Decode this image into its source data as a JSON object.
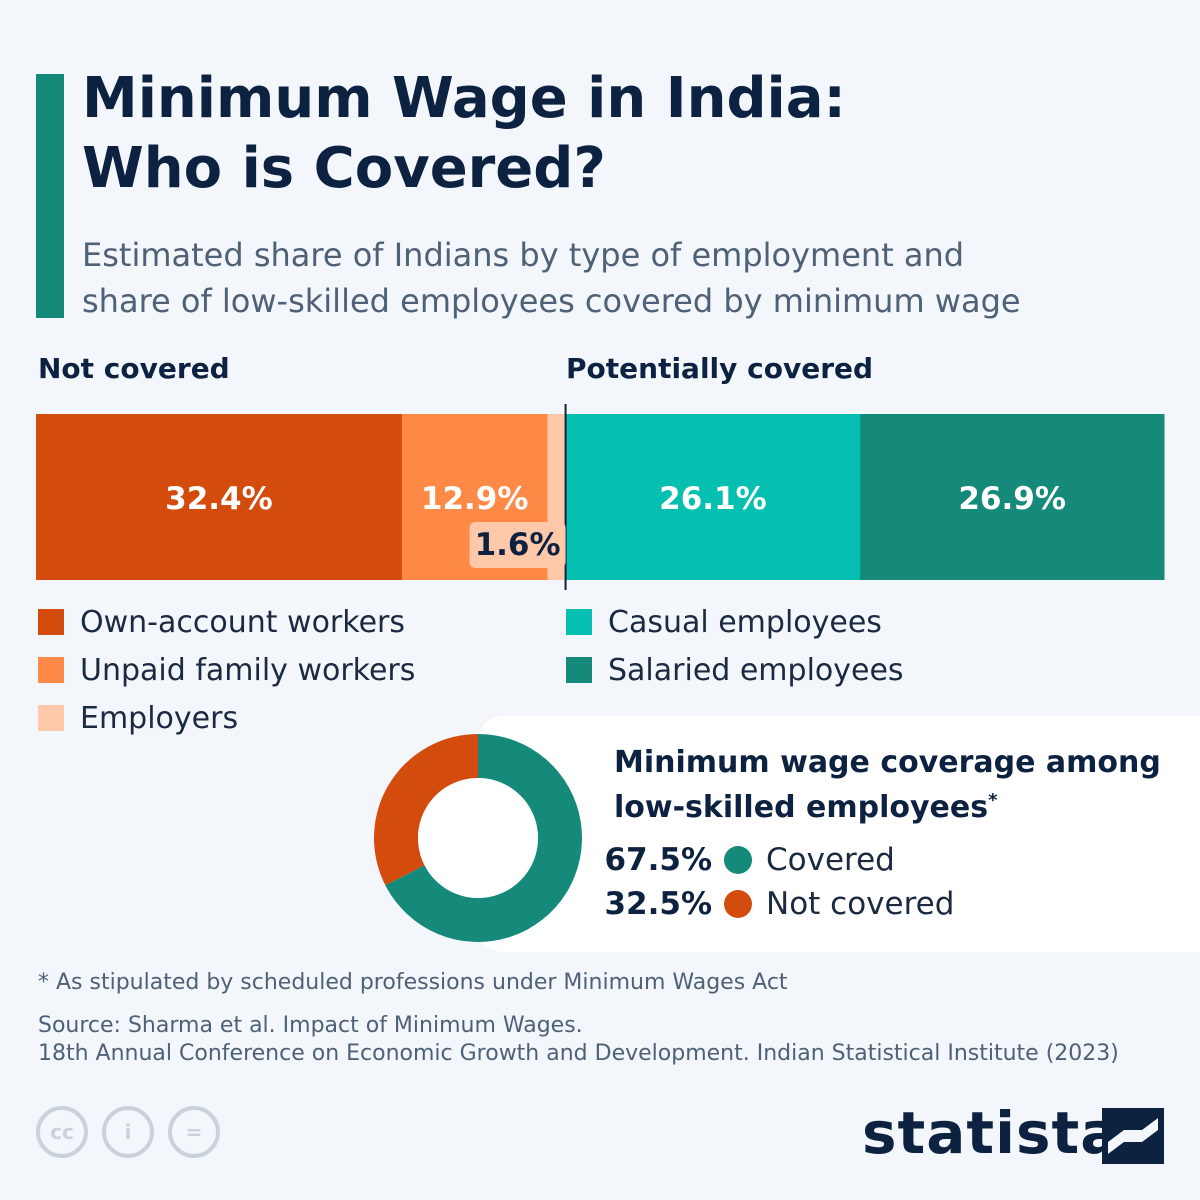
{
  "title_line1": "Minimum Wage in India:",
  "title_line2": "Who is Covered?",
  "subtitle_line1": "Estimated share of Indians by type of employment and",
  "subtitle_line2": "share of low-skilled employees covered by minimum wage",
  "colors": {
    "own_account": "#d44b0e",
    "unpaid_family": "#ff8a48",
    "employers": "#ffc8a8",
    "casual": "#05bfb0",
    "salaried": "#15897a",
    "accent": "#15897a",
    "title": "#0d2240",
    "covered": "#15897a",
    "not_covered": "#d44b0e"
  },
  "chart_data": [
    {
      "type": "bar",
      "orientation": "horizontal-stacked",
      "groups": [
        "Not covered",
        "Potentially covered"
      ],
      "categories": [
        "Own-account workers",
        "Unpaid family workers",
        "Employers",
        "Casual employees",
        "Salaried employees"
      ],
      "values": [
        32.4,
        12.9,
        1.6,
        26.1,
        26.9
      ],
      "labels": [
        "32.4%",
        "12.9%",
        "1.6%",
        "26.1%",
        "26.9%"
      ],
      "group_of_category": [
        "Not covered",
        "Not covered",
        "Not covered",
        "Potentially covered",
        "Potentially covered"
      ],
      "unit": "%"
    },
    {
      "type": "pie",
      "variant": "donut",
      "title": "Minimum wage coverage among low-skilled employees",
      "title_marker": "*",
      "categories": [
        "Covered",
        "Not covered"
      ],
      "values": [
        67.5,
        32.5
      ],
      "labels": [
        "67.5%",
        "32.5%"
      ]
    }
  ],
  "legend_left": [
    "Own-account workers",
    "Unpaid family workers",
    "Employers"
  ],
  "legend_right": [
    "Casual employees",
    "Salaried employees"
  ],
  "footnote": "* As stipulated by scheduled professions under Minimum Wages Act",
  "source_line1": "Source: Sharma et al. Impact of Minimum Wages.",
  "source_line2": "18th Annual Conference on Economic Growth and Development. Indian Statistical Institute (2023)",
  "license": {
    "cc": "cc",
    "by": "i",
    "nd": "="
  },
  "brand": "statista"
}
